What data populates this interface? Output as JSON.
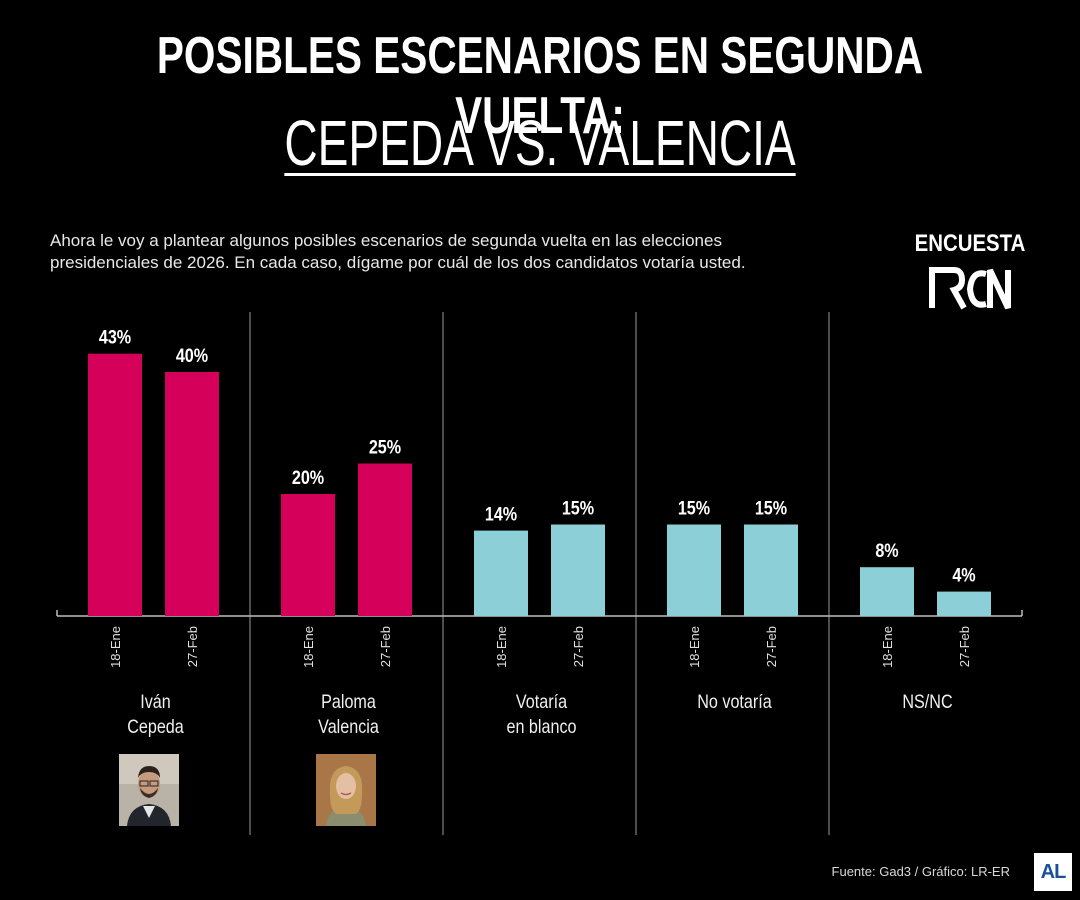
{
  "header": {
    "title": "POSIBLES ESCENARIOS EN SEGUNDA VUELTA:",
    "subtitle": "CEPEDA VS. VALENCIA"
  },
  "question": "Ahora le voy a plantear algunos posibles escenarios de segunda vuelta en las elecciones presidenciales de 2026. En cada caso, dígame por cuál de los dos candidatos votaría usted.",
  "brand": {
    "label": "ENCUESTA",
    "logo_icon": "rcn-logo-icon"
  },
  "footer": {
    "source": "Fuente: Gad3 / Gráfico: LR-ER",
    "publisher_logo": "AL"
  },
  "colors": {
    "candidate": "#d4005a",
    "other": "#8ccfd6",
    "background": "#000000",
    "publisher": "#1a4f9c"
  },
  "chart_data": {
    "type": "bar",
    "dates": [
      "18-Ene",
      "27-Feb"
    ],
    "groups": [
      {
        "label": [
          "Iván",
          "Cepeda"
        ],
        "values": [
          43,
          40
        ],
        "color": "candidate",
        "photo": "ivan-cepeda-photo"
      },
      {
        "label": [
          "Paloma",
          "Valencia"
        ],
        "values": [
          20,
          25
        ],
        "color": "candidate",
        "photo": "paloma-valencia-photo"
      },
      {
        "label": [
          "Votaría",
          "en blanco"
        ],
        "values": [
          14,
          15
        ],
        "color": "other"
      },
      {
        "label": [
          "No votaría"
        ],
        "values": [
          15,
          15
        ],
        "color": "other"
      },
      {
        "label": [
          "NS/NC"
        ],
        "values": [
          8,
          4
        ],
        "color": "other"
      }
    ],
    "unit": "%"
  }
}
